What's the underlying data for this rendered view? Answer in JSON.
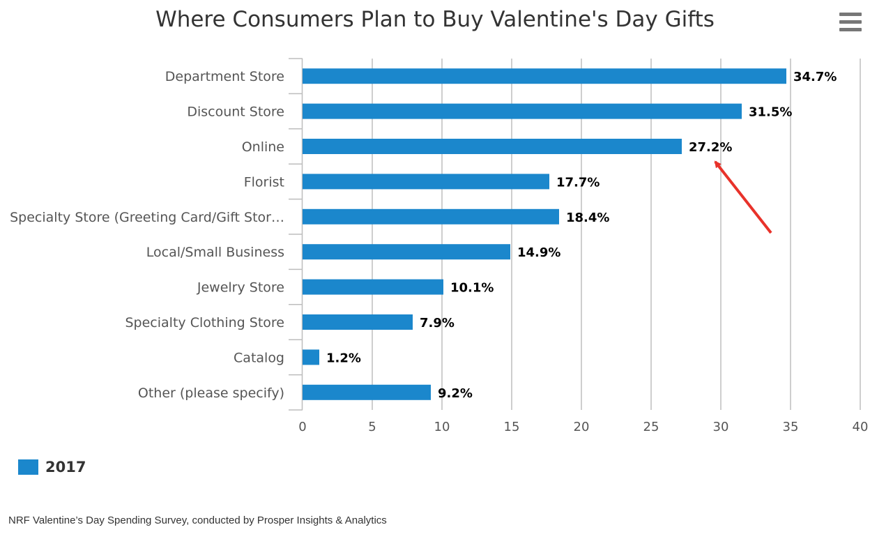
{
  "chart_data": {
    "type": "bar",
    "orientation": "horizontal",
    "title": "Where Consumers Plan to Buy Valentine's Day Gifts",
    "categories": [
      "Department Store",
      "Discount Store",
      "Online",
      "Florist",
      "Specialty Store (Greeting Card/Gift Stor…",
      "Local/Small Business",
      "Jewelry Store",
      "Specialty Clothing Store",
      "Catalog",
      "Other (please specify)"
    ],
    "series": [
      {
        "name": "2017",
        "color": "#1b87cc",
        "values": [
          34.7,
          31.5,
          27.2,
          17.7,
          18.4,
          14.9,
          10.1,
          7.9,
          1.2,
          9.2
        ],
        "labels": [
          "34.7%",
          "31.5%",
          "27.2%",
          "17.7%",
          "18.4%",
          "14.9%",
          "10.1%",
          "7.9%",
          "1.2%",
          "9.2%"
        ]
      }
    ],
    "xlim": [
      0,
      40
    ],
    "xticks": [
      "0",
      "5",
      "10",
      "15",
      "20",
      "25",
      "30",
      "35",
      "40"
    ],
    "grid": true,
    "legend_position": "bottom-left",
    "annotation": {
      "type": "arrow",
      "color": "#e8322a",
      "points_to": "Online"
    }
  },
  "legend": {
    "label": "2017",
    "color": "#1b87cc"
  },
  "credits": "NRF Valentine’s Day Spending Survey, conducted by Prosper Insights & Analytics",
  "menu_icon": "hamburger-menu-icon"
}
